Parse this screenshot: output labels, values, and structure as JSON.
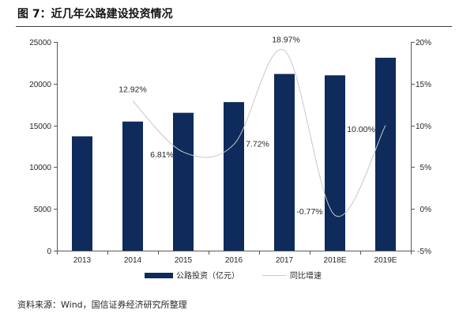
{
  "chart_data": {
    "type": "bar",
    "title": "图 7：近几年公路建设投资情况",
    "categories": [
      "2013",
      "2014",
      "2015",
      "2016",
      "2017",
      "2018E",
      "2019E"
    ],
    "series": [
      {
        "name": "公路投资（亿元）",
        "type": "bar",
        "axis": "left",
        "color": "#0e2b5c",
        "values": [
          13690,
          15460,
          16510,
          17790,
          21160,
          21000,
          23100
        ]
      },
      {
        "name": "同比增速",
        "type": "line",
        "axis": "right",
        "smooth": true,
        "color": "#c8c8c8",
        "values": [
          null,
          12.92,
          6.81,
          7.72,
          18.97,
          -0.77,
          10.0
        ],
        "data_labels": [
          null,
          "12.92%",
          "6.81%",
          "7.72%",
          "18.97%",
          "-0.77%",
          "10.00%"
        ]
      }
    ],
    "y_left": {
      "min": 0,
      "max": 25000,
      "ticks": [
        0,
        5000,
        10000,
        15000,
        20000,
        25000
      ],
      "tick_labels": [
        "0",
        "5000",
        "10000",
        "15000",
        "20000",
        "25000"
      ]
    },
    "y_right": {
      "min": -5,
      "max": 20,
      "ticks": [
        -5,
        0,
        5,
        10,
        15,
        20
      ],
      "tick_labels": [
        "-5%",
        "0%",
        "5%",
        "10%",
        "15%",
        "20%"
      ]
    },
    "grid": false,
    "legend_position": "bottom"
  },
  "source_note": "资料来源：Wind，国信证券经济研究所整理"
}
